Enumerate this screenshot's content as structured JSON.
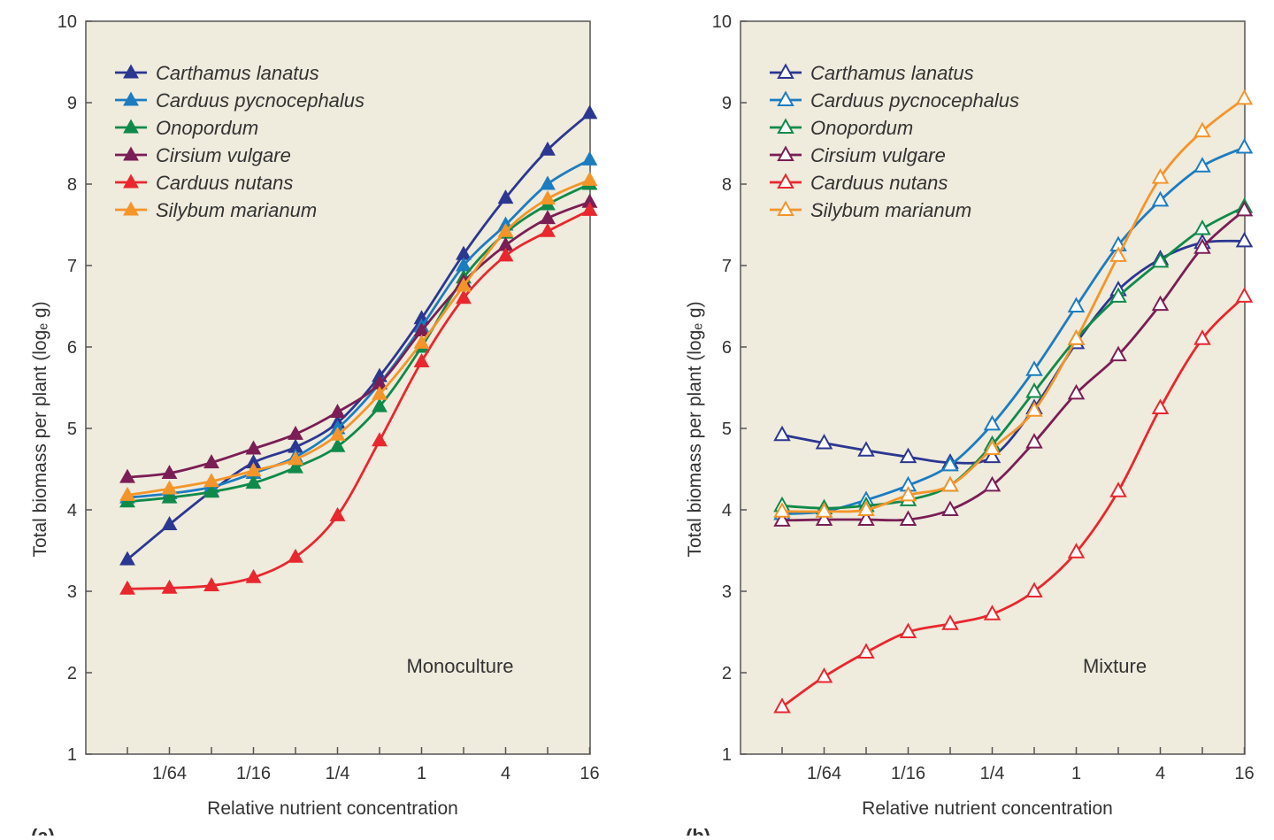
{
  "chart_data": [
    {
      "type": "line",
      "panel_label": "(a)",
      "annotation": "Monoculture",
      "xlabel": "Relative nutrient concentration",
      "ylabel": "Total biomass per plant (logₑ g)",
      "x_scale": "log2",
      "x": [
        0.0078125,
        0.015625,
        0.03125,
        0.0625,
        0.125,
        0.25,
        0.5,
        1,
        2,
        4,
        8,
        16
      ],
      "x_tick_labels": [
        {
          "value": 0.015625,
          "label": "1/64"
        },
        {
          "value": 0.0625,
          "label": "1/16"
        },
        {
          "value": 0.25,
          "label": "1/4"
        },
        {
          "value": 1,
          "label": "1"
        },
        {
          "value": 4,
          "label": "4"
        },
        {
          "value": 16,
          "label": "16"
        }
      ],
      "ylim": [
        1,
        10
      ],
      "y_ticks": [
        "1",
        "2",
        "3",
        "4",
        "5",
        "6",
        "7",
        "8",
        "9",
        "10"
      ],
      "legend_position": "top-left",
      "marker": "filled-triangle",
      "background": "#efebdd",
      "series": [
        {
          "name": "Carthamus lanatus",
          "color": "#2b3790",
          "values": [
            3.39,
            3.82,
            4.23,
            4.58,
            4.77,
            5.07,
            5.64,
            6.35,
            7.14,
            7.83,
            8.42,
            8.87
          ]
        },
        {
          "name": "Carduus pycnocephalus",
          "color": "#1c7cc0",
          "values": [
            4.15,
            4.2,
            4.28,
            4.45,
            4.65,
            5.0,
            5.55,
            6.25,
            7.0,
            7.5,
            8.0,
            8.3
          ]
        },
        {
          "name": "Onopordum",
          "color": "#108a4a",
          "values": [
            4.1,
            4.15,
            4.22,
            4.33,
            4.52,
            4.78,
            5.27,
            6.0,
            6.85,
            7.4,
            7.75,
            8.0
          ]
        },
        {
          "name": "Cirsium vulgare",
          "color": "#7a1e55",
          "values": [
            4.4,
            4.45,
            4.58,
            4.75,
            4.93,
            5.2,
            5.55,
            6.2,
            6.8,
            7.25,
            7.58,
            7.78
          ]
        },
        {
          "name": "Carduus nutans",
          "color": "#e8272e",
          "values": [
            3.03,
            3.04,
            3.07,
            3.17,
            3.42,
            3.93,
            4.85,
            5.82,
            6.6,
            7.12,
            7.42,
            7.68
          ]
        },
        {
          "name": "Silybum marianum",
          "color": "#f4952a",
          "values": [
            4.18,
            4.26,
            4.35,
            4.48,
            4.62,
            4.92,
            5.42,
            6.05,
            6.75,
            7.42,
            7.82,
            8.05
          ]
        }
      ]
    },
    {
      "type": "line",
      "panel_label": "(b)",
      "annotation": "Mixture",
      "xlabel": "Relative nutrient concentration",
      "ylabel": "Total biomass per plant (logₑ g)",
      "x_scale": "log2",
      "x": [
        0.0078125,
        0.015625,
        0.03125,
        0.0625,
        0.125,
        0.25,
        0.5,
        1,
        2,
        4,
        8,
        16
      ],
      "x_tick_labels": [
        {
          "value": 0.015625,
          "label": "1/64"
        },
        {
          "value": 0.0625,
          "label": "1/16"
        },
        {
          "value": 0.25,
          "label": "1/4"
        },
        {
          "value": 1,
          "label": "1"
        },
        {
          "value": 4,
          "label": "4"
        },
        {
          "value": 16,
          "label": "16"
        }
      ],
      "ylim": [
        1,
        10
      ],
      "y_ticks": [
        "1",
        "2",
        "3",
        "4",
        "5",
        "6",
        "7",
        "8",
        "9",
        "10"
      ],
      "legend_position": "top-left",
      "marker": "open-triangle",
      "background": "#efebdd",
      "series": [
        {
          "name": "Carthamus lanatus",
          "color": "#2b3790",
          "values": [
            4.92,
            4.82,
            4.73,
            4.65,
            4.58,
            4.65,
            5.25,
            6.05,
            6.7,
            7.08,
            7.28,
            7.3
          ]
        },
        {
          "name": "Carduus pycnocephalus",
          "color": "#1c7cc0",
          "values": [
            3.95,
            3.98,
            4.12,
            4.3,
            4.55,
            5.05,
            5.72,
            6.5,
            7.25,
            7.8,
            8.22,
            8.45
          ]
        },
        {
          "name": "Onopordum",
          "color": "#108a4a",
          "values": [
            4.05,
            4.02,
            4.05,
            4.12,
            4.3,
            4.8,
            5.45,
            6.1,
            6.62,
            7.05,
            7.45,
            7.72
          ]
        },
        {
          "name": "Cirsium vulgare",
          "color": "#7a1e55",
          "values": [
            3.87,
            3.88,
            3.88,
            3.88,
            4.0,
            4.3,
            4.83,
            5.43,
            5.9,
            6.52,
            7.22,
            7.68
          ]
        },
        {
          "name": "Carduus nutans",
          "color": "#e8272e",
          "values": [
            1.58,
            1.95,
            2.25,
            2.5,
            2.6,
            2.72,
            3.0,
            3.48,
            4.23,
            5.25,
            6.1,
            6.62
          ]
        },
        {
          "name": "Silybum marianum",
          "color": "#f4952a",
          "values": [
            3.98,
            3.98,
            4.0,
            4.18,
            4.3,
            4.75,
            5.22,
            6.1,
            7.12,
            8.08,
            8.65,
            9.05
          ]
        }
      ]
    }
  ]
}
